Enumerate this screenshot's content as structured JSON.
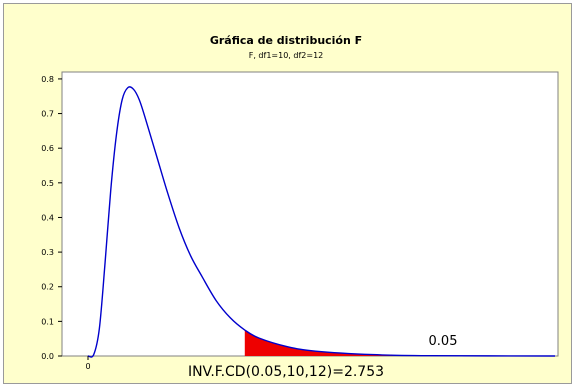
{
  "chart_data": {
    "type": "area",
    "title": "Gráfica de distribución F",
    "subtitle": "F, df1=10, df2=12",
    "df1": 10,
    "df2": 12,
    "xlim": [
      0,
      8.2
    ],
    "ylim": [
      0,
      0.82
    ],
    "x_ticks": [
      "0"
    ],
    "y_ticks": [
      "0.0",
      "0.1",
      "0.2",
      "0.3",
      "0.4",
      "0.5",
      "0.6",
      "0.7",
      "0.8"
    ],
    "y_tick_values": [
      0.0,
      0.1,
      0.2,
      0.3,
      0.4,
      0.5,
      0.6,
      0.7,
      0.8
    ],
    "series": [
      {
        "x": [
          0,
          0.1,
          0.2,
          0.3,
          0.4,
          0.5,
          0.6,
          0.7,
          0.8,
          0.9,
          1.0,
          1.2,
          1.4,
          1.6,
          1.8,
          2.0,
          2.25,
          2.5,
          2.753,
          3.0,
          3.5,
          4.0,
          5.0,
          6.0,
          8.2
        ],
        "values": [
          0.0,
          0.004,
          0.08,
          0.27,
          0.48,
          0.64,
          0.74,
          0.775,
          0.77,
          0.74,
          0.69,
          0.58,
          0.47,
          0.37,
          0.29,
          0.23,
          0.16,
          0.11,
          0.075,
          0.052,
          0.027,
          0.014,
          0.004,
          0.001,
          0.0
        ]
      }
    ],
    "shaded_from": 2.753,
    "annotation": "0.05",
    "critical_label": "INV.F.CD(0.05,10,12)=2.753",
    "colors": {
      "curve": "#0000cc",
      "shade": "#ee0000",
      "background": "#ffffcc",
      "plot_bg": "#ffffff"
    }
  }
}
